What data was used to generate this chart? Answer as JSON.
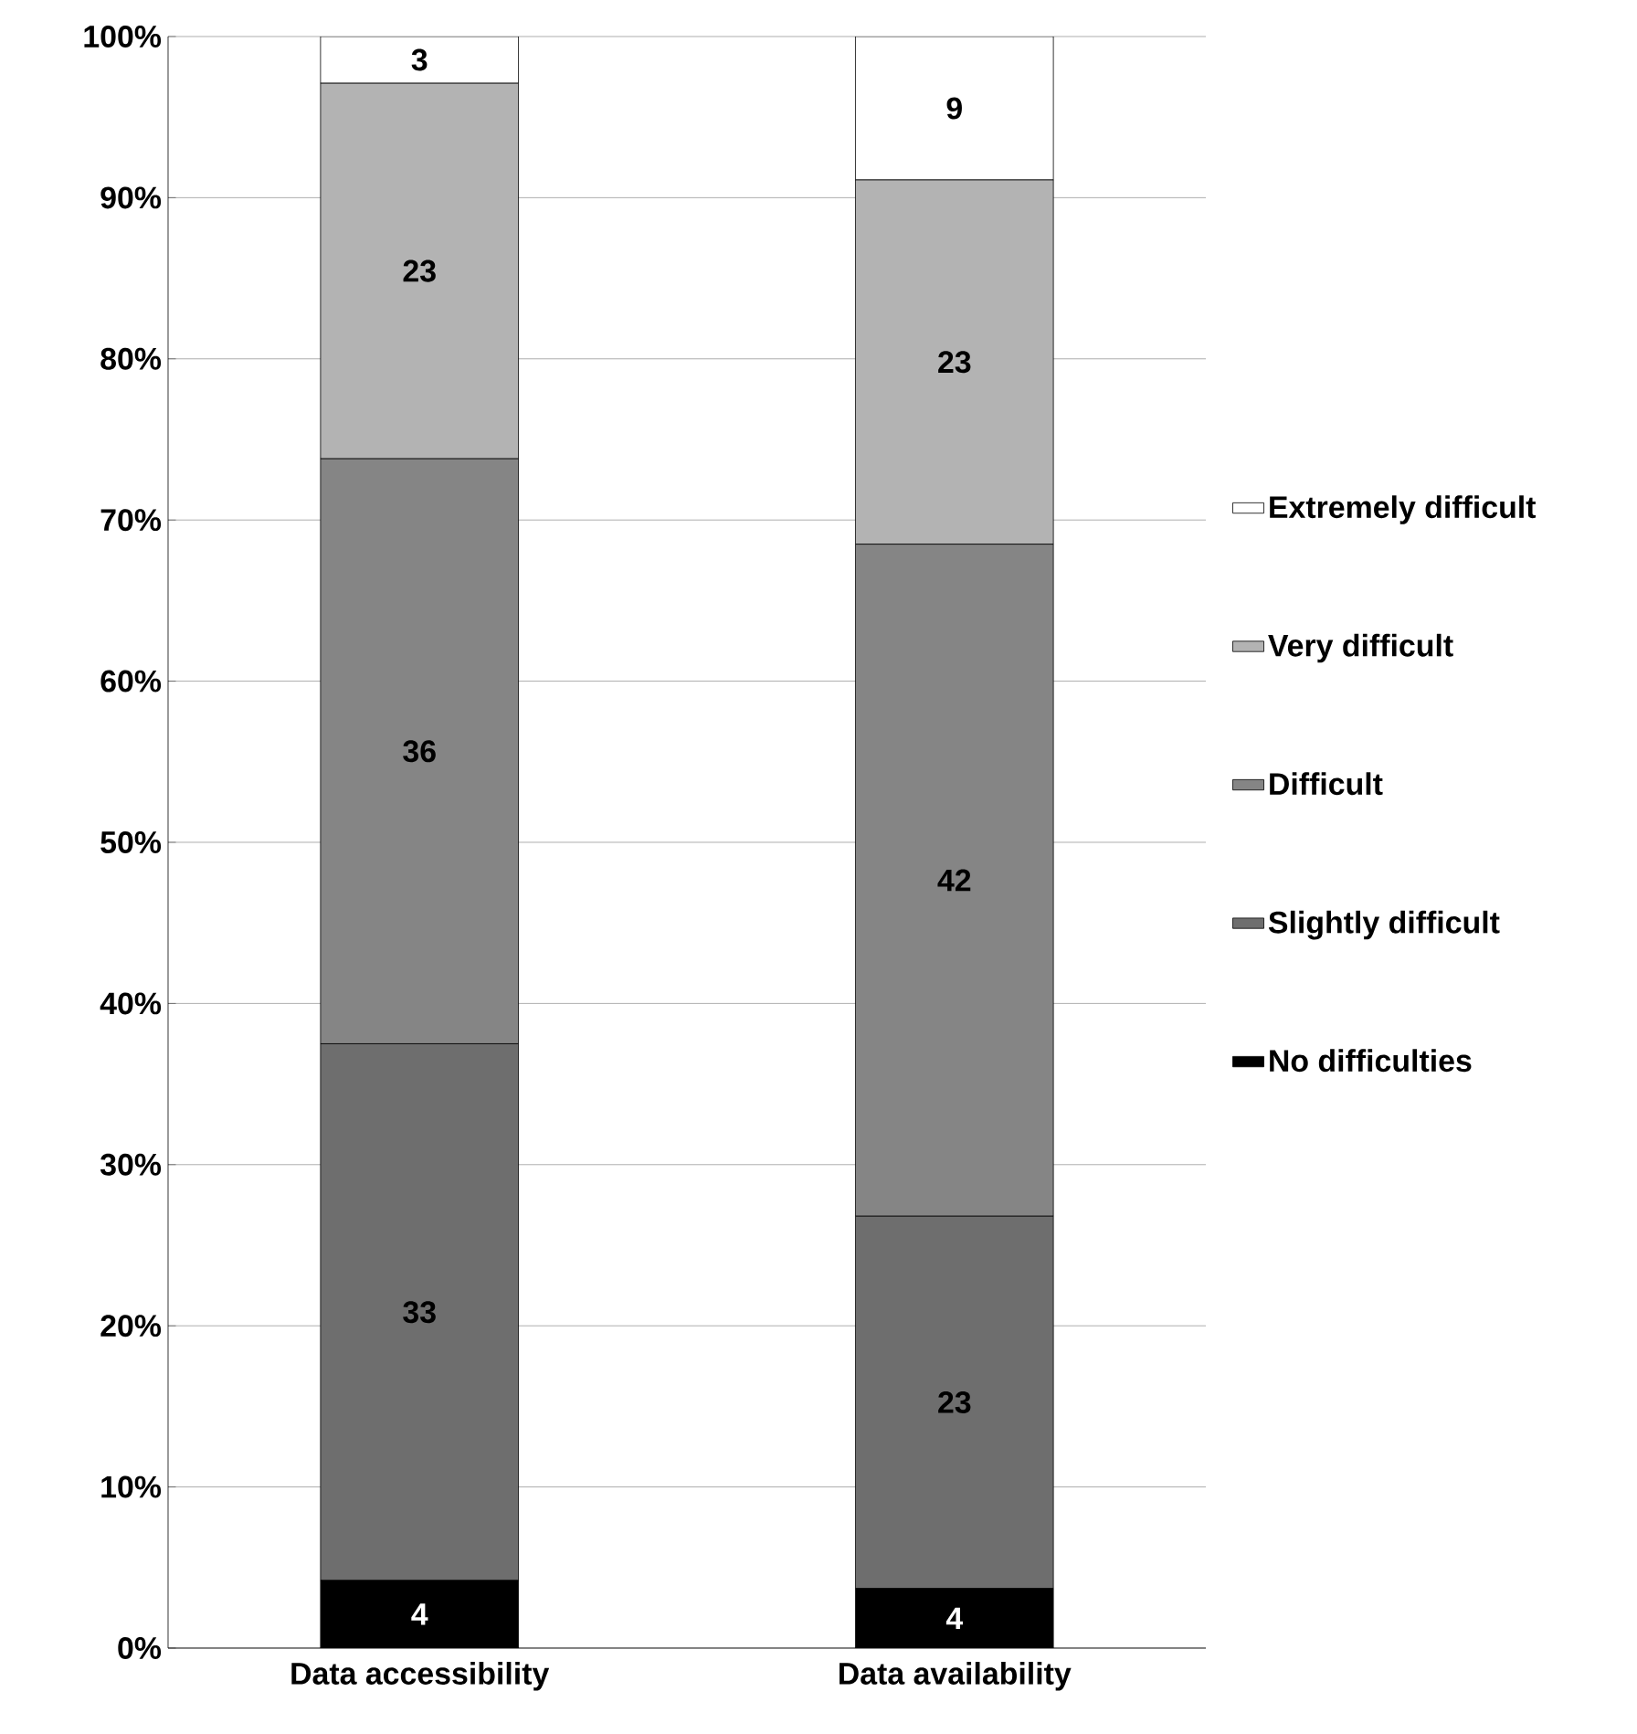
{
  "chart_data": {
    "type": "bar",
    "stacked": true,
    "categories": [
      "Data accessibility",
      "Data availability"
    ],
    "series": [
      {
        "name": "No difficulties",
        "color": "#000000",
        "values": [
          4.2,
          3.7
        ],
        "value_labels": [
          "4",
          "4"
        ]
      },
      {
        "name": "Slightly difficult",
        "color": "#6e6e6e",
        "values": [
          33.3,
          23.1
        ],
        "value_labels": [
          "33",
          "23"
        ]
      },
      {
        "name": "Difficult",
        "color": "#858585",
        "values": [
          36.3,
          41.7
        ],
        "value_labels": [
          "36",
          "42"
        ]
      },
      {
        "name": "Very difficult",
        "color": "#b3b3b3",
        "values": [
          23.3,
          22.6
        ],
        "value_labels": [
          "23",
          "23"
        ]
      },
      {
        "name": "Extremely difficult",
        "color": "#ffffff",
        "values": [
          2.9,
          8.9
        ],
        "value_labels": [
          "3",
          "9"
        ]
      }
    ],
    "ylim": [
      0,
      100
    ],
    "yticks": [
      {
        "value": 0,
        "label": "0%"
      },
      {
        "value": 10,
        "label": "10%"
      },
      {
        "value": 20,
        "label": "20%"
      },
      {
        "value": 30,
        "label": "30%"
      },
      {
        "value": 40,
        "label": "40%"
      },
      {
        "value": 50,
        "label": "50%"
      },
      {
        "value": 60,
        "label": "60%"
      },
      {
        "value": 70,
        "label": "70%"
      },
      {
        "value": 80,
        "label": "80%"
      },
      {
        "value": 90,
        "label": "90%"
      },
      {
        "value": 100,
        "label": "100%"
      }
    ],
    "grid": "y",
    "legend": "right"
  }
}
